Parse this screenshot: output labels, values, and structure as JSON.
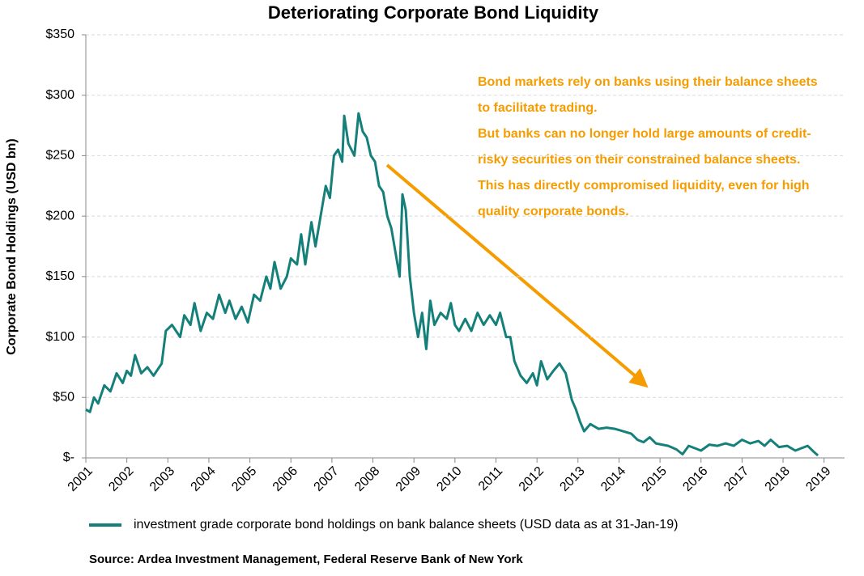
{
  "chart_data": {
    "type": "line",
    "title": "Deteriorating Corporate Bond Liquidity",
    "y_label": "Corporate Bond Holdings (USD bn)",
    "source": "Source: Ardea Investment Management, Federal Reserve Bank of New York",
    "annotation": [
      "Bond markets rely on banks using their balance sheets",
      "to facilitate trading.",
      "But banks can no longer hold large amounts of credit-",
      "risky securities on their constrained balance sheets.",
      "This has directly compromised liquidity, even for high",
      "quality corporate bonds."
    ],
    "annotation_color": "#f59c00",
    "x": [
      2001.0,
      2001.1,
      2001.2,
      2001.3,
      2001.45,
      2001.6,
      2001.75,
      2001.9,
      2002.0,
      2002.1,
      2002.2,
      2002.35,
      2002.5,
      2002.65,
      2002.85,
      2002.95,
      2003.1,
      2003.3,
      2003.4,
      2003.55,
      2003.65,
      2003.8,
      2003.95,
      2004.1,
      2004.25,
      2004.4,
      2004.5,
      2004.65,
      2004.8,
      2004.95,
      2005.1,
      2005.25,
      2005.4,
      2005.5,
      2005.6,
      2005.75,
      2005.9,
      2006.0,
      2006.15,
      2006.25,
      2006.35,
      2006.5,
      2006.6,
      2006.75,
      2006.85,
      2006.95,
      2007.05,
      2007.15,
      2007.25,
      2007.3,
      2007.4,
      2007.55,
      2007.65,
      2007.75,
      2007.85,
      2007.95,
      2008.05,
      2008.15,
      2008.25,
      2008.35,
      2008.45,
      2008.55,
      2008.65,
      2008.72,
      2008.8,
      2008.9,
      2009.0,
      2009.1,
      2009.2,
      2009.3,
      2009.4,
      2009.5,
      2009.65,
      2009.8,
      2009.9,
      2010.0,
      2010.1,
      2010.25,
      2010.4,
      2010.55,
      2010.7,
      2010.85,
      2011.0,
      2011.1,
      2011.25,
      2011.35,
      2011.45,
      2011.6,
      2011.75,
      2011.9,
      2012.0,
      2012.1,
      2012.25,
      2012.4,
      2012.55,
      2012.7,
      2012.85,
      2012.95,
      2013.05,
      2013.15,
      2013.3,
      2013.5,
      2013.7,
      2013.9,
      2014.1,
      2014.3,
      2014.45,
      2014.6,
      2014.75,
      2014.9,
      2015.05,
      2015.2,
      2015.4,
      2015.55,
      2015.7,
      2015.85,
      2016.0,
      2016.2,
      2016.4,
      2016.6,
      2016.8,
      2017.0,
      2017.2,
      2017.4,
      2017.55,
      2017.7,
      2017.9,
      2018.1,
      2018.3,
      2018.45,
      2018.6,
      2018.75,
      2018.85
    ],
    "series": [
      {
        "name": "investment grade corporate bond holdings on bank balance sheets (USD data as at 31-Jan-19)",
        "color": "#15807a",
        "values": [
          40,
          38,
          50,
          45,
          60,
          55,
          70,
          62,
          72,
          68,
          85,
          70,
          75,
          68,
          78,
          105,
          110,
          100,
          118,
          110,
          128,
          105,
          120,
          115,
          135,
          120,
          130,
          115,
          125,
          112,
          135,
          130,
          150,
          140,
          162,
          140,
          150,
          165,
          160,
          185,
          160,
          195,
          175,
          205,
          225,
          215,
          250,
          255,
          245,
          283,
          260,
          250,
          285,
          270,
          265,
          250,
          245,
          225,
          220,
          200,
          190,
          170,
          150,
          218,
          205,
          150,
          120,
          100,
          120,
          90,
          130,
          110,
          120,
          115,
          128,
          110,
          105,
          115,
          105,
          120,
          110,
          118,
          110,
          120,
          100,
          100,
          80,
          68,
          62,
          70,
          60,
          80,
          65,
          72,
          78,
          70,
          48,
          40,
          30,
          22,
          28,
          24,
          25,
          24,
          22,
          20,
          15,
          13,
          17,
          12,
          11,
          10,
          7,
          3,
          10,
          8,
          6,
          11,
          10,
          12,
          10,
          15,
          12,
          14,
          10,
          15,
          9,
          10,
          6,
          8,
          10,
          5,
          2
        ]
      }
    ],
    "xlim": [
      2001,
      2019.5
    ],
    "xticks": [
      2001,
      2002,
      2003,
      2004,
      2005,
      2006,
      2007,
      2008,
      2009,
      2010,
      2011,
      2012,
      2013,
      2014,
      2015,
      2016,
      2017,
      2018,
      2019
    ],
    "ylim": [
      0,
      350
    ],
    "yticks": [
      {
        "value": 0,
        "label": "$-"
      },
      {
        "value": 50,
        "label": "$50"
      },
      {
        "value": 100,
        "label": "$100"
      },
      {
        "value": 150,
        "label": "$150"
      },
      {
        "value": 200,
        "label": "$200"
      },
      {
        "value": 250,
        "label": "$250"
      },
      {
        "value": 300,
        "label": "$300"
      },
      {
        "value": 350,
        "label": "$350"
      }
    ],
    "grid": true
  }
}
